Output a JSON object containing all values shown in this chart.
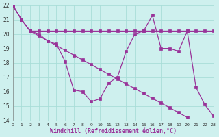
{
  "background_color": "#cef0ee",
  "grid_color": "#a8ddd8",
  "line_color": "#993399",
  "xlim": [
    0,
    23
  ],
  "ylim": [
    14,
    22
  ],
  "yticks": [
    14,
    15,
    16,
    17,
    18,
    19,
    20,
    21,
    22
  ],
  "xticks": [
    0,
    1,
    2,
    3,
    4,
    5,
    6,
    7,
    8,
    9,
    10,
    11,
    12,
    13,
    14,
    15,
    16,
    17,
    18,
    19,
    20,
    21,
    22,
    23
  ],
  "xlabel": "Windchill (Refroidissement éolien,°C)",
  "series": [
    [
      22.0,
      21.0,
      20.2,
      20.0,
      19.5,
      19.3,
      18.1,
      16.1,
      16.0,
      15.3,
      15.5,
      16.6,
      17.0,
      18.8,
      20.0,
      20.2,
      21.3,
      19.0,
      19.0,
      18.8,
      20.2,
      16.3,
      15.1,
      14.3
    ],
    [
      22.0,
      21.0,
      20.2,
      20.2,
      20.2,
      20.2,
      20.2,
      20.2,
      20.2,
      20.2,
      20.2,
      20.2,
      20.2,
      20.2,
      20.2,
      20.2,
      20.2,
      20.2,
      20.2,
      20.2,
      20.2,
      20.2,
      20.2,
      20.2
    ],
    [
      22.0,
      21.0,
      20.2,
      19.87,
      19.53,
      19.2,
      18.87,
      18.53,
      18.2,
      17.87,
      17.53,
      17.2,
      16.87,
      16.53,
      16.2,
      15.87,
      15.53,
      15.2,
      14.87,
      14.53,
      14.2,
      null,
      null,
      null
    ]
  ]
}
